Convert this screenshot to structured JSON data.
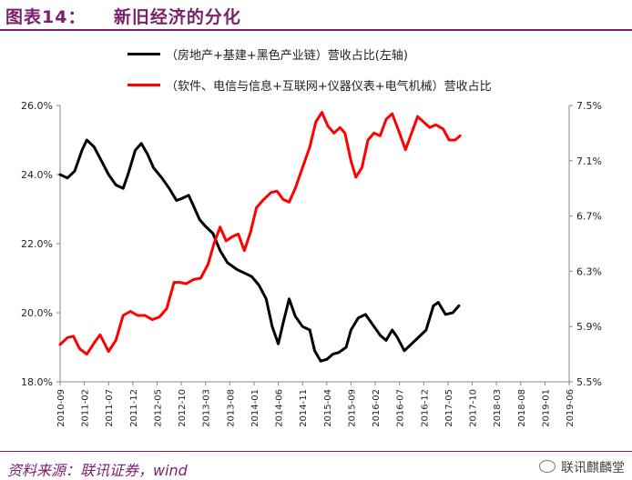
{
  "header": {
    "title": "图表14：    新旧经济的分化"
  },
  "footer": {
    "source": "资料来源：联讯证券，wind",
    "brand": "联讯麒麟堂"
  },
  "colors": {
    "accent": "#7a1f6b",
    "old_series": "#000000",
    "new_series": "#ff0000"
  },
  "chart_data": {
    "type": "line",
    "title": "",
    "xlabel": "",
    "ylabel": "",
    "x_ticks": [
      "2010-09",
      "2011-02",
      "2011-07",
      "2011-12",
      "2012-05",
      "2012-10",
      "2013-03",
      "2013-08",
      "2014-01",
      "2014-06",
      "2014-11",
      "2015-04",
      "2015-09",
      "2016-02",
      "2016-07",
      "2016-12",
      "2017-05",
      "2017-10",
      "2018-03",
      "2018-08",
      "2019-01",
      "2019-06"
    ],
    "y_left": {
      "ticks": [
        "18.0%",
        "20.0%",
        "22.0%",
        "24.0%",
        "26.0%"
      ],
      "min": 18.0,
      "max": 26.0
    },
    "y_right": {
      "ticks": [
        "5.5%",
        "5.9%",
        "6.3%",
        "6.7%",
        "7.1%",
        "7.5%"
      ],
      "min": 5.5,
      "max": 7.5
    },
    "legend_position": "top",
    "series": [
      {
        "name": "（房地产+基建+黑色产业链）营收占比(左轴)",
        "axis": "left",
        "color": "#000000",
        "points": [
          [
            0,
            24.0
          ],
          [
            0.3,
            23.9
          ],
          [
            0.6,
            24.1
          ],
          [
            0.9,
            24.7
          ],
          [
            1.1,
            25.0
          ],
          [
            1.4,
            24.8
          ],
          [
            1.7,
            24.4
          ],
          [
            2.0,
            24.0
          ],
          [
            2.3,
            23.7
          ],
          [
            2.6,
            23.6
          ],
          [
            2.8,
            24.0
          ],
          [
            3.1,
            24.7
          ],
          [
            3.35,
            24.9
          ],
          [
            3.6,
            24.6
          ],
          [
            3.85,
            24.2
          ],
          [
            4.2,
            23.9
          ],
          [
            4.5,
            23.6
          ],
          [
            4.8,
            23.25
          ],
          [
            5.0,
            23.3
          ],
          [
            5.3,
            23.4
          ],
          [
            5.5,
            23.1
          ],
          [
            5.75,
            22.7
          ],
          [
            6.0,
            22.5
          ],
          [
            6.3,
            22.3
          ],
          [
            6.6,
            21.8
          ],
          [
            6.9,
            21.45
          ],
          [
            7.3,
            21.25
          ],
          [
            7.6,
            21.15
          ],
          [
            7.9,
            21.05
          ],
          [
            8.2,
            20.8
          ],
          [
            8.5,
            20.4
          ],
          [
            8.75,
            19.6
          ],
          [
            9.0,
            19.1
          ],
          [
            9.2,
            19.7
          ],
          [
            9.45,
            20.4
          ],
          [
            9.7,
            19.9
          ],
          [
            10.0,
            19.6
          ],
          [
            10.3,
            19.5
          ],
          [
            10.5,
            18.9
          ],
          [
            10.75,
            18.6
          ],
          [
            11.0,
            18.65
          ],
          [
            11.25,
            18.8
          ],
          [
            11.5,
            18.85
          ],
          [
            11.8,
            19.0
          ],
          [
            12.0,
            19.5
          ],
          [
            12.3,
            19.85
          ],
          [
            12.6,
            19.95
          ],
          [
            12.9,
            19.65
          ],
          [
            13.2,
            19.35
          ],
          [
            13.45,
            19.2
          ],
          [
            13.7,
            19.5
          ],
          [
            13.9,
            19.3
          ],
          [
            14.2,
            18.9
          ],
          [
            14.5,
            19.1
          ],
          [
            14.8,
            19.3
          ],
          [
            15.1,
            19.5
          ],
          [
            15.4,
            20.2
          ],
          [
            15.6,
            20.3
          ],
          [
            15.9,
            19.95
          ],
          [
            16.2,
            20.0
          ],
          [
            16.45,
            20.2
          ]
        ]
      },
      {
        "name": "（软件、电信与信息+互联网+仪器仪表+电气机械）营收占比",
        "axis": "right",
        "color": "#ff0000",
        "points": [
          [
            0,
            5.77
          ],
          [
            0.3,
            5.82
          ],
          [
            0.55,
            5.83
          ],
          [
            0.8,
            5.74
          ],
          [
            1.1,
            5.7
          ],
          [
            1.4,
            5.78
          ],
          [
            1.65,
            5.84
          ],
          [
            2.0,
            5.72
          ],
          [
            2.3,
            5.8
          ],
          [
            2.6,
            5.98
          ],
          [
            2.9,
            6.01
          ],
          [
            3.2,
            5.98
          ],
          [
            3.5,
            5.98
          ],
          [
            3.8,
            5.95
          ],
          [
            4.1,
            5.97
          ],
          [
            4.4,
            6.03
          ],
          [
            4.7,
            6.22
          ],
          [
            4.95,
            6.22
          ],
          [
            5.2,
            6.21
          ],
          [
            5.5,
            6.24
          ],
          [
            5.8,
            6.25
          ],
          [
            6.1,
            6.35
          ],
          [
            6.35,
            6.5
          ],
          [
            6.6,
            6.62
          ],
          [
            6.85,
            6.52
          ],
          [
            7.1,
            6.55
          ],
          [
            7.35,
            6.57
          ],
          [
            7.6,
            6.45
          ],
          [
            7.85,
            6.58
          ],
          [
            8.1,
            6.76
          ],
          [
            8.4,
            6.82
          ],
          [
            8.7,
            6.87
          ],
          [
            8.95,
            6.88
          ],
          [
            9.2,
            6.82
          ],
          [
            9.45,
            6.8
          ],
          [
            9.7,
            6.9
          ],
          [
            10.0,
            7.05
          ],
          [
            10.3,
            7.2
          ],
          [
            10.55,
            7.38
          ],
          [
            10.8,
            7.45
          ],
          [
            11.05,
            7.35
          ],
          [
            11.3,
            7.3
          ],
          [
            11.55,
            7.34
          ],
          [
            11.75,
            7.3
          ],
          [
            12.0,
            7.1
          ],
          [
            12.2,
            6.98
          ],
          [
            12.45,
            7.05
          ],
          [
            12.7,
            7.25
          ],
          [
            12.95,
            7.3
          ],
          [
            13.2,
            7.28
          ],
          [
            13.45,
            7.4
          ],
          [
            13.7,
            7.44
          ],
          [
            14.0,
            7.3
          ],
          [
            14.25,
            7.18
          ],
          [
            14.5,
            7.3
          ],
          [
            14.75,
            7.42
          ],
          [
            15.0,
            7.38
          ],
          [
            15.25,
            7.34
          ],
          [
            15.5,
            7.36
          ],
          [
            15.8,
            7.33
          ],
          [
            16.05,
            7.25
          ],
          [
            16.3,
            7.25
          ],
          [
            16.5,
            7.28
          ]
        ]
      }
    ]
  }
}
